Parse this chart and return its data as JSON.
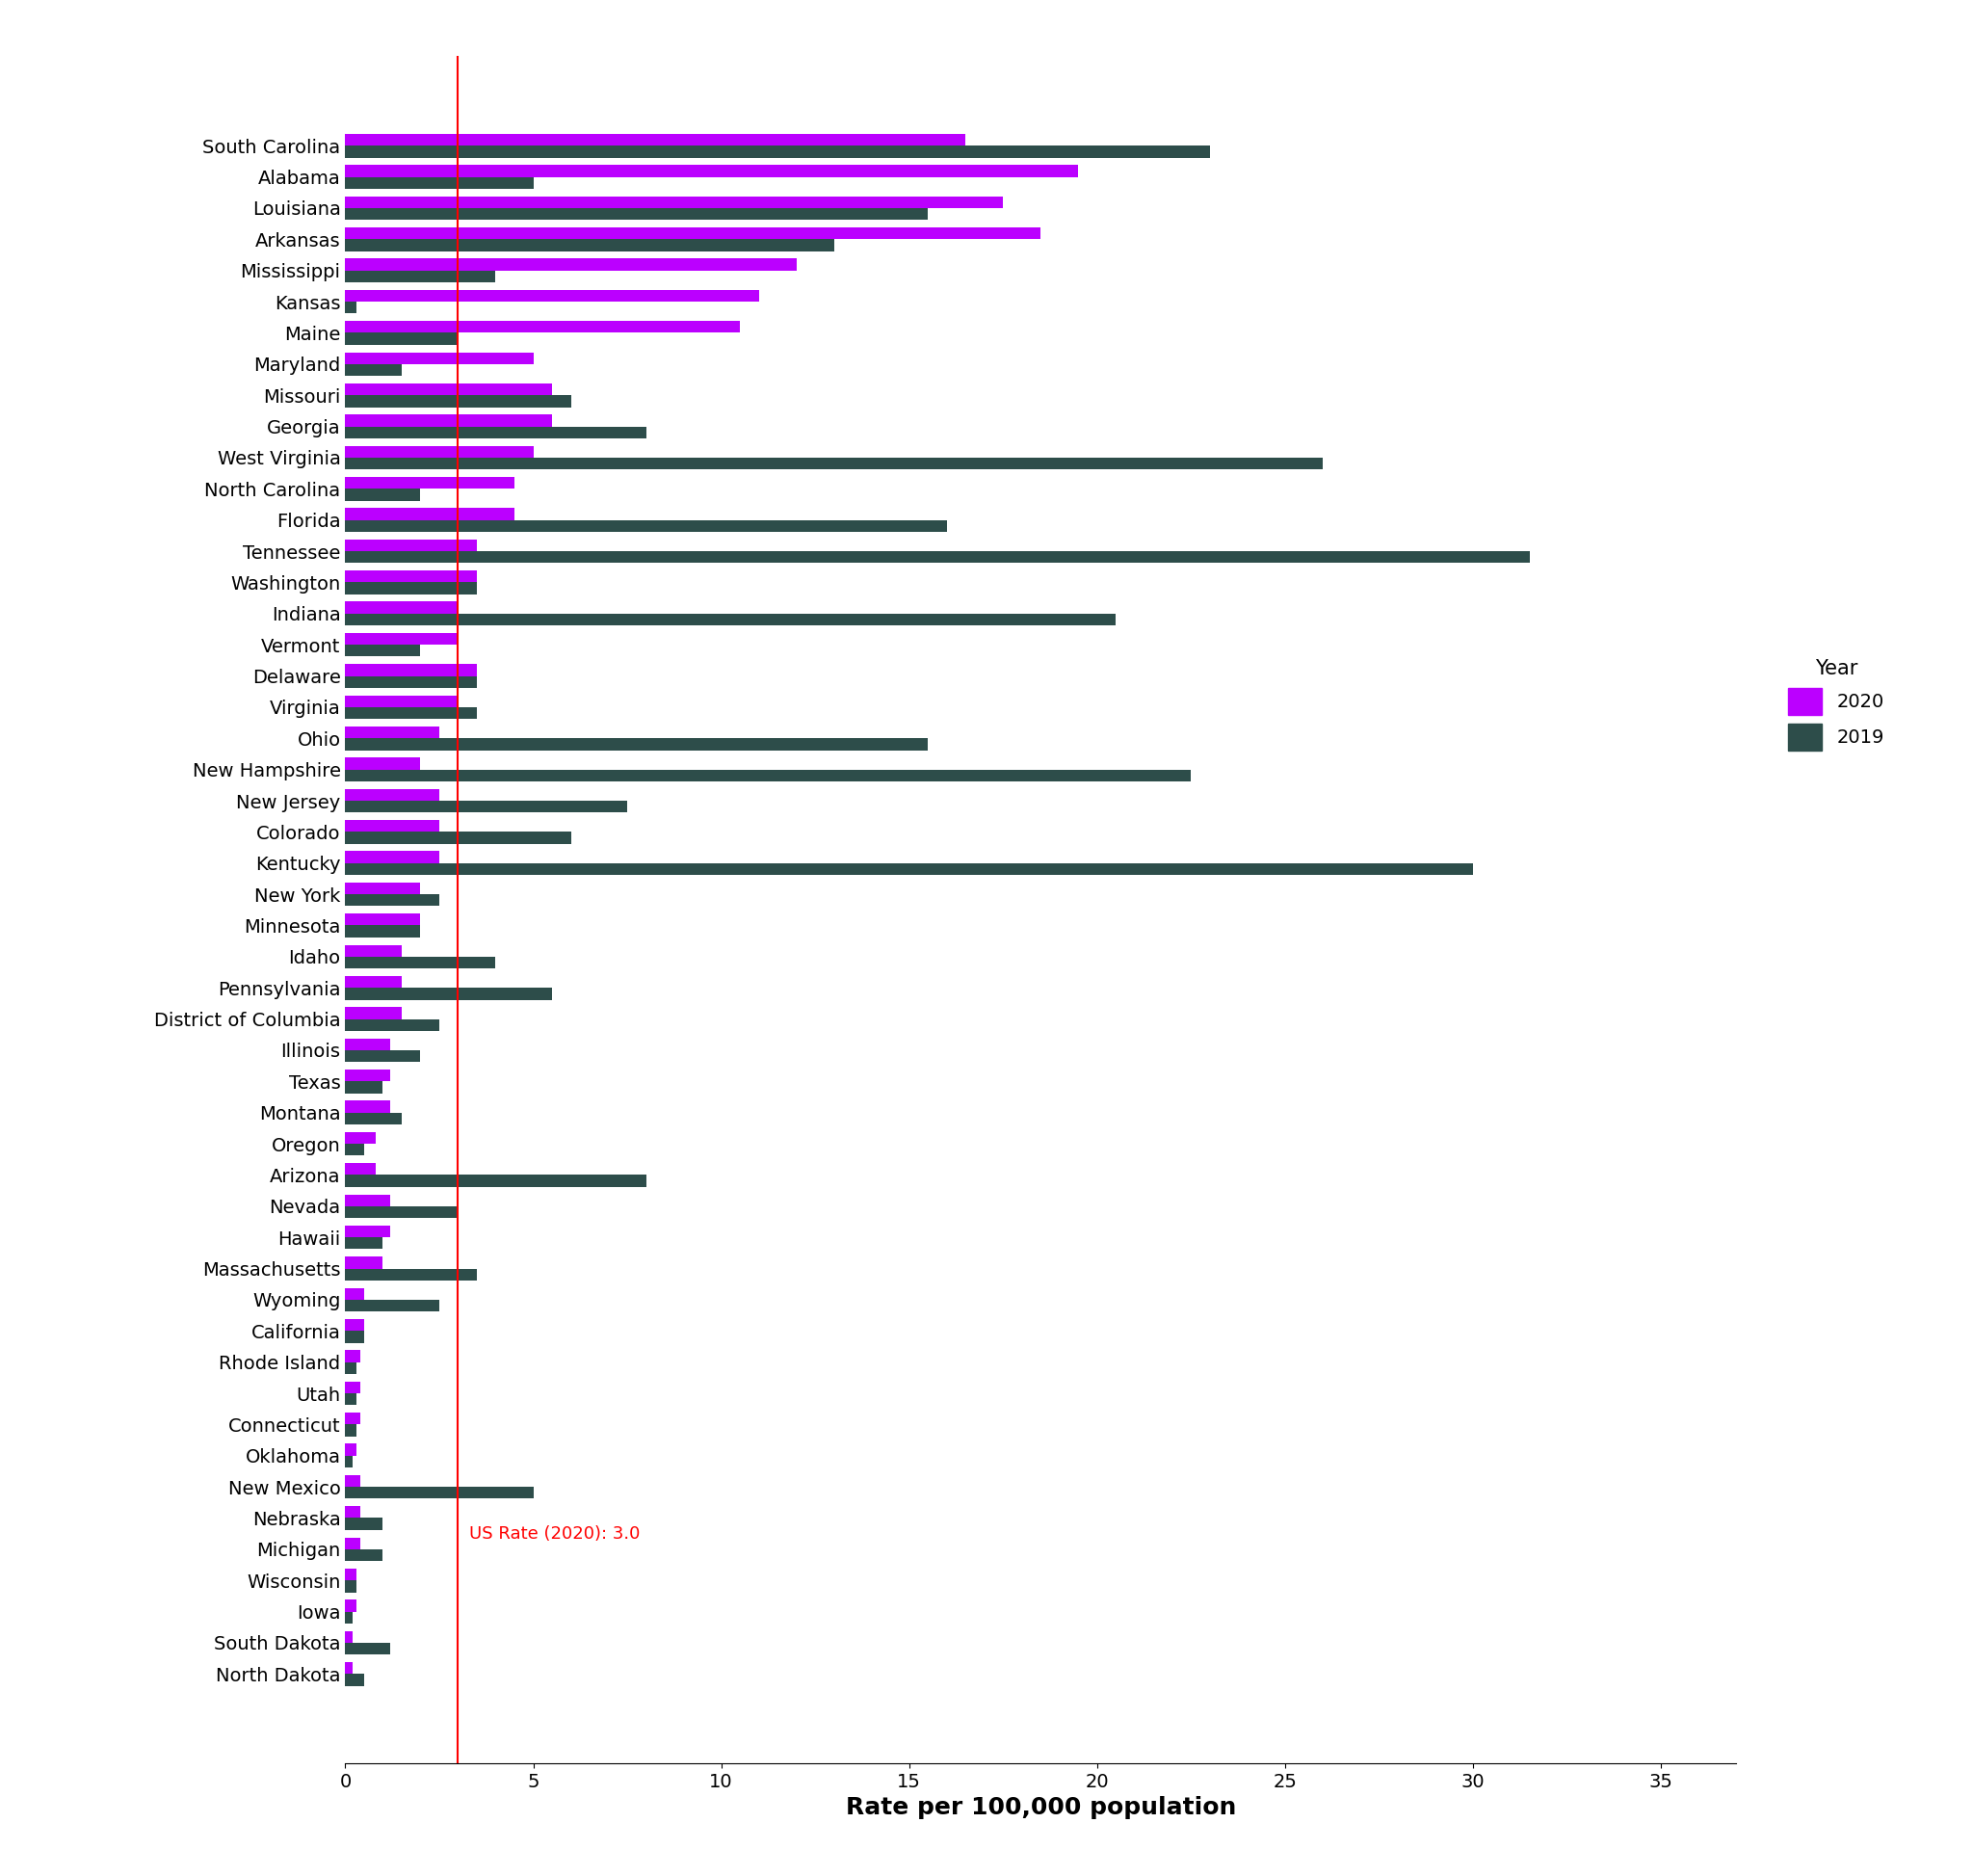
{
  "states": [
    "South Carolina",
    "Alabama",
    "Louisiana",
    "Arkansas",
    "Mississippi",
    "Kansas",
    "Maine",
    "Maryland",
    "Missouri",
    "Georgia",
    "West Virginia",
    "North Carolina",
    "Florida",
    "Tennessee",
    "Washington",
    "Indiana",
    "Vermont",
    "Delaware",
    "Virginia",
    "Ohio",
    "New Hampshire",
    "New Jersey",
    "Colorado",
    "Kentucky",
    "New York",
    "Minnesota",
    "Idaho",
    "Pennsylvania",
    "District of Columbia",
    "Illinois",
    "Texas",
    "Montana",
    "Oregon",
    "Arizona",
    "Nevada",
    "Hawaii",
    "Massachusetts",
    "Wyoming",
    "California",
    "Rhode Island",
    "Utah",
    "Connecticut",
    "Oklahoma",
    "New Mexico",
    "Nebraska",
    "Michigan",
    "Wisconsin",
    "Iowa",
    "South Dakota",
    "North Dakota"
  ],
  "values_2019": [
    23.0,
    5.0,
    15.5,
    13.0,
    4.0,
    0.3,
    3.0,
    1.5,
    6.0,
    8.0,
    26.0,
    2.0,
    16.0,
    31.5,
    3.5,
    20.5,
    2.0,
    3.5,
    3.5,
    15.5,
    22.5,
    7.5,
    6.0,
    30.0,
    2.5,
    2.0,
    4.0,
    5.5,
    2.5,
    2.0,
    1.0,
    1.5,
    0.5,
    8.0,
    3.0,
    1.0,
    3.5,
    2.5,
    0.5,
    0.3,
    0.3,
    0.3,
    0.2,
    5.0,
    1.0,
    1.0,
    0.3,
    0.2,
    1.2,
    0.5
  ],
  "values_2020": [
    16.5,
    19.5,
    17.5,
    18.5,
    12.0,
    11.0,
    10.5,
    5.0,
    5.5,
    5.5,
    5.0,
    4.5,
    4.5,
    3.5,
    3.5,
    3.0,
    3.0,
    3.5,
    3.0,
    2.5,
    2.0,
    2.5,
    2.5,
    2.5,
    2.0,
    2.0,
    1.5,
    1.5,
    1.5,
    1.2,
    1.2,
    1.2,
    0.8,
    0.8,
    1.2,
    1.2,
    1.0,
    0.5,
    0.5,
    0.4,
    0.4,
    0.4,
    0.3,
    0.4,
    0.4,
    0.4,
    0.3,
    0.3,
    0.2,
    0.2
  ],
  "color_2020": "#BB00FF",
  "color_2019": "#2D4D4A",
  "us_rate_2020": 3.0,
  "us_rate_label": "US Rate (2020): 3.0",
  "xlabel": "Rate per 100,000 population",
  "xlim": [
    0,
    37
  ],
  "bar_height": 0.38,
  "background_color": "#FFFFFF",
  "legend_title": "Year",
  "legend_2020": "2020",
  "legend_2019": "2019"
}
